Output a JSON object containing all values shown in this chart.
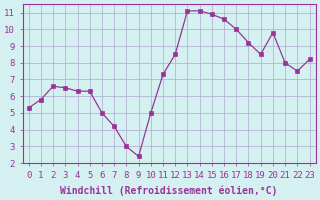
{
  "x_data": [
    0,
    1,
    2,
    3,
    4,
    5,
    6,
    7,
    8,
    9,
    10,
    11,
    12,
    13,
    14,
    15,
    16,
    17,
    18,
    19,
    20,
    21,
    22,
    23
  ],
  "y_data": [
    5.3,
    5.8,
    6.6,
    6.5,
    6.3,
    6.3,
    5.0,
    4.2,
    3.0,
    2.4,
    5.0,
    7.3,
    8.5,
    11.1,
    11.1,
    10.9,
    10.6,
    10.0,
    9.2,
    8.5,
    9.8,
    8.0,
    7.5,
    8.2
  ],
  "line_color": "#993399",
  "marker_color": "#993399",
  "bg_color": "#d5f0f0",
  "grid_color": "#aaaacc",
  "xlabel": "Windchill (Refroidissement éolien,°C)",
  "xlim": [
    -0.5,
    23.5
  ],
  "ylim": [
    2,
    11.5
  ],
  "yticks": [
    2,
    3,
    4,
    5,
    6,
    7,
    8,
    9,
    10,
    11
  ],
  "xticks": [
    0,
    1,
    2,
    3,
    4,
    5,
    6,
    7,
    8,
    9,
    10,
    11,
    12,
    13,
    14,
    15,
    16,
    17,
    18,
    19,
    20,
    21,
    22,
    23
  ],
  "font_size": 6.5,
  "xlabel_fontsize": 7.0,
  "marker_size": 3
}
